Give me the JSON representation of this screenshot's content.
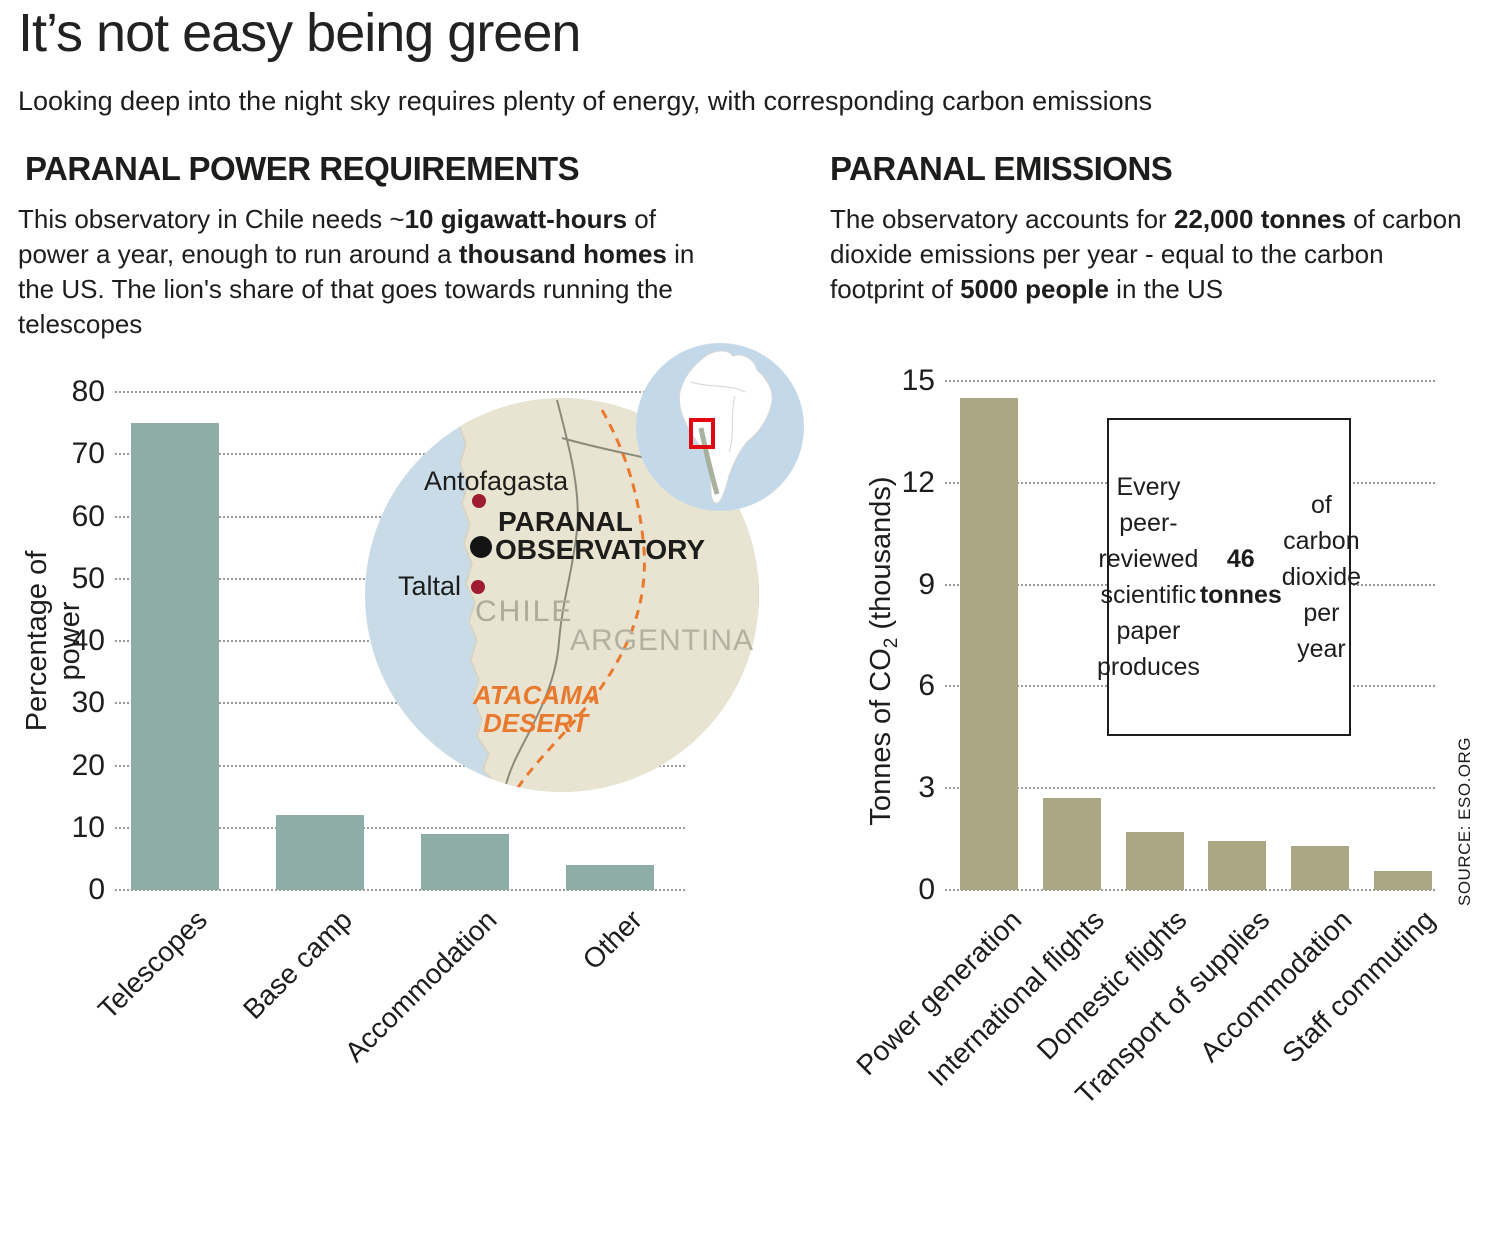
{
  "header": {
    "title": "It’s not easy being green",
    "subtitle": "Looking deep into the night sky requires plenty of energy, with corresponding carbon emissions"
  },
  "power_section": {
    "heading": "PARANAL POWER REQUIREMENTS",
    "description": [
      {
        "t": "This observatory in Chile needs ~"
      },
      {
        "t": "10 gigawatt-hours",
        "b": true
      },
      {
        "t": " of power a year, enough to run around a "
      },
      {
        "t": "thousand homes",
        "b": true
      },
      {
        "t": " in the US. The lion's share of that goes towards running the telescopes"
      }
    ]
  },
  "emissions_section": {
    "heading": "PARANAL EMISSIONS",
    "description": [
      {
        "t": "The observatory accounts for "
      },
      {
        "t": "22,000 tonnes",
        "b": true
      },
      {
        "t": " of carbon dioxide emissions per year - equal to the carbon footprint of "
      },
      {
        "t": "5000 people",
        "b": true
      },
      {
        "t": " in the US"
      }
    ],
    "callout": [
      {
        "t": "Every peer-reviewed scientific paper produces "
      },
      {
        "t": "46 tonnes",
        "b": true
      },
      {
        "t": " of carbon dioxide per year"
      }
    ],
    "source": "SOURCE: ESO.ORG"
  },
  "map": {
    "city_antofagasta": "Antofagasta",
    "city_taltal": "Taltal",
    "observatory_line1": "PARANAL",
    "observatory_line2": "OBSERVATORY",
    "country_chile": "CHILE",
    "country_argentina": "ARGENTINA",
    "desert_line1": "ATACAMA",
    "desert_line2": "DESERT"
  },
  "axis_labels": {
    "power_y": [
      {
        "t": "Percentage of power"
      }
    ],
    "emissions_y": [
      {
        "t": "Tonnes of CO"
      },
      {
        "t": "2",
        "sub": true
      },
      {
        "t": " (thousands)"
      }
    ]
  },
  "colors": {
    "power_bar": "#8fada7",
    "emissions_bar": "#aba684",
    "ocean": "#c9dbe7",
    "land": "#e9e4d1",
    "desert_orange": "#e87a2f",
    "map_dot_red": "#9e1b32",
    "inset_highlight_red": "#e30613",
    "text": "#1d1d1b"
  },
  "chart_data": [
    {
      "type": "bar",
      "title": "PARANAL POWER REQUIREMENTS",
      "categories": [
        "Telescopes",
        "Base camp",
        "Accommodation",
        "Other"
      ],
      "values": [
        75,
        12,
        9,
        4
      ],
      "xlabel": "",
      "ylabel": "Percentage of power",
      "yticks": [
        0,
        10,
        20,
        30,
        40,
        50,
        60,
        70,
        80
      ],
      "ylim": [
        0,
        80
      ],
      "bar_color": "#8fada7",
      "grid": "horizontal-dotted",
      "legend": "none"
    },
    {
      "type": "bar",
      "title": "PARANAL EMISSIONS",
      "categories": [
        "Power generation",
        "International flights",
        "Domestic flights",
        "Transport of supplies",
        "Accommodation",
        "Staff commuting"
      ],
      "values": [
        14.5,
        2.7,
        1.7,
        1.45,
        1.3,
        0.55
      ],
      "xlabel": "",
      "ylabel": "Tonnes of CO2 (thousands)",
      "yticks": [
        0,
        3,
        6,
        9,
        12,
        15
      ],
      "ylim": [
        0,
        15
      ],
      "bar_color": "#aba684",
      "grid": "horizontal-dotted",
      "legend": "none"
    }
  ]
}
